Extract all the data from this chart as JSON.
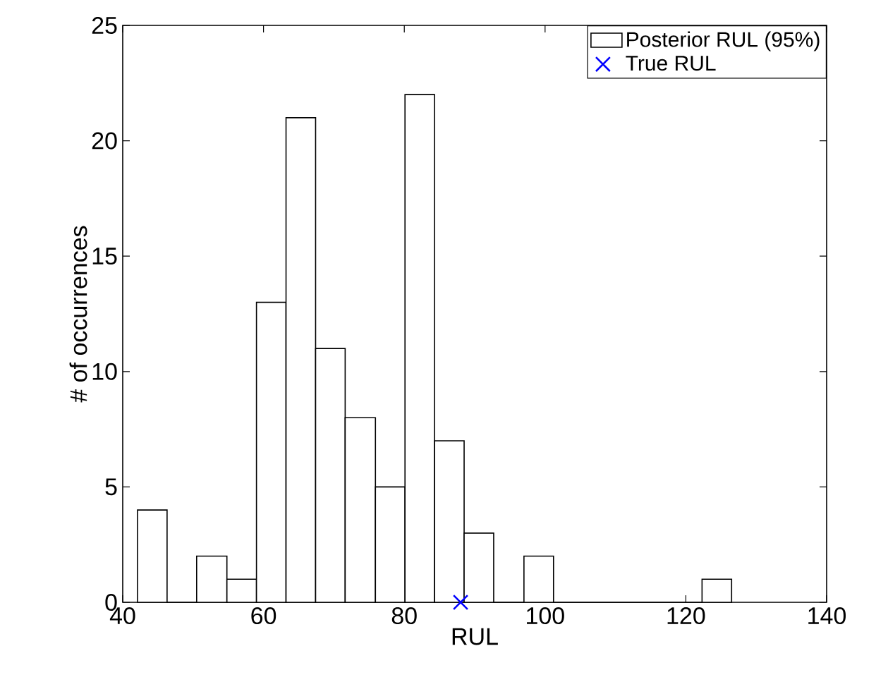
{
  "chart_data": {
    "type": "histogram",
    "xlabel": "RUL",
    "ylabel": "# of occurrences",
    "xlim": [
      40,
      140
    ],
    "xticks": [
      40,
      60,
      80,
      100,
      120,
      140
    ],
    "ylim": [
      0,
      25
    ],
    "yticks": [
      0,
      5,
      10,
      15,
      20,
      25
    ],
    "legend": "top right",
    "grid": false,
    "series": [
      {
        "name": "Posterior RUL (95%)",
        "color": "#ffffff",
        "bins": [
          42.1,
          46.3,
          50.5,
          54.8,
          59.0,
          63.2,
          67.4,
          71.6,
          75.9,
          80.1,
          84.3,
          88.5,
          92.7,
          97.0,
          101.2,
          122.3,
          126.5
        ],
        "values": [
          4,
          0,
          2,
          1,
          13,
          21,
          11,
          8,
          5,
          22,
          7,
          3,
          0,
          2,
          0,
          1
        ]
      },
      {
        "name": "True RUL",
        "type": "scatter",
        "color": "#0000ff",
        "marker": "cross",
        "x": [
          88
        ],
        "values": [
          0
        ]
      }
    ]
  }
}
